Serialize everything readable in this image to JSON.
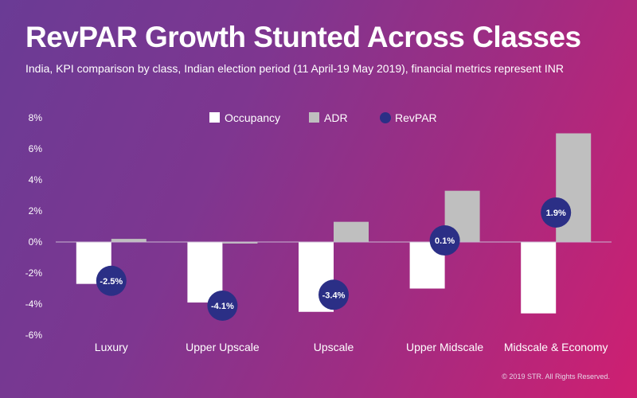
{
  "page": {
    "title": "RevPAR Growth Stunted Across Classes",
    "subtitle": "India, KPI comparison by class, Indian election period (11 April-19 May 2019), financial metrics represent INR",
    "footer": "© 2019 STR. All Rights Reserved."
  },
  "chart_data": {
    "type": "bar",
    "title": "RevPAR Growth Stunted Across Classes",
    "categories": [
      "Luxury",
      "Upper Upscale",
      "Upscale",
      "Upper Midscale",
      "Midscale & Economy"
    ],
    "series": [
      {
        "name": "Occupancy",
        "kind": "bar",
        "color": "#ffffff",
        "values": [
          -2.7,
          -3.9,
          -4.5,
          -3.0,
          -4.6
        ]
      },
      {
        "name": "ADR",
        "kind": "bar",
        "color": "#bfbfbf",
        "values": [
          0.2,
          -0.1,
          1.3,
          3.3,
          7.0
        ]
      },
      {
        "name": "RevPAR",
        "kind": "marker",
        "color": "#2b2f86",
        "values": [
          -2.5,
          -4.1,
          -3.4,
          0.1,
          1.9
        ],
        "labels": [
          "-2.5%",
          "-4.1%",
          "-3.4%",
          "0.1%",
          "1.9%"
        ]
      }
    ],
    "ylim": [
      -6,
      8
    ],
    "yticks": [
      -6,
      -4,
      -2,
      0,
      2,
      4,
      6,
      8
    ],
    "ytick_labels": [
      "-6%",
      "-4%",
      "-2%",
      "0%",
      "2%",
      "4%",
      "6%",
      "8%"
    ],
    "legend": "top-center",
    "xlabel": "",
    "ylabel": ""
  }
}
